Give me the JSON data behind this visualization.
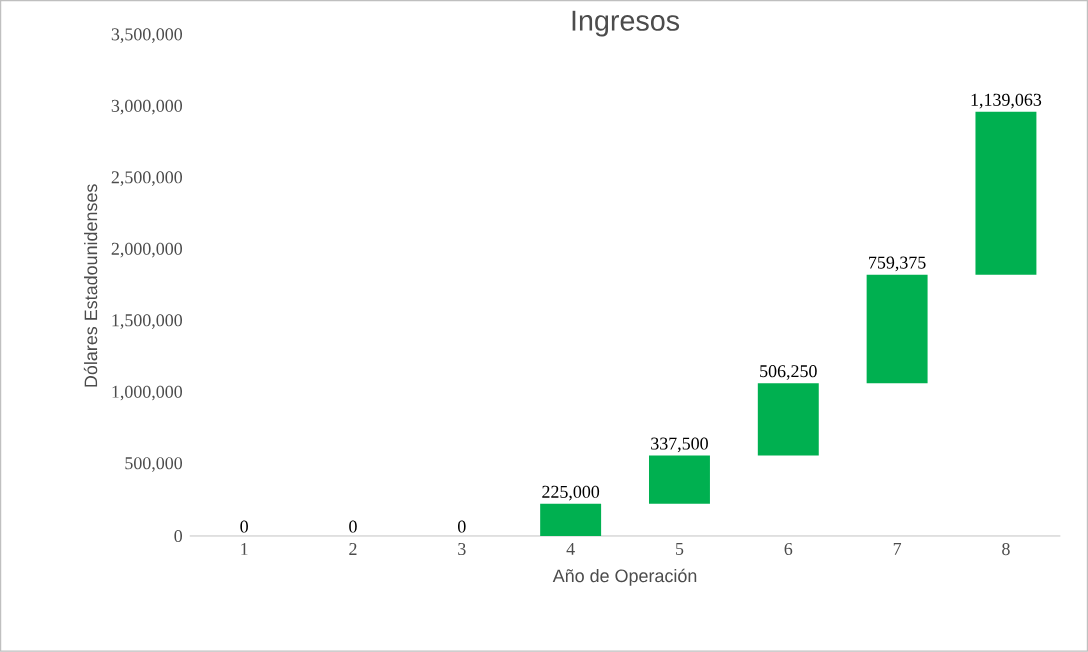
{
  "chart_data": {
    "type": "bar",
    "title": "Ingresos",
    "xlabel": "Año de Operación",
    "ylabel": "Dólares Estadounidenses",
    "categories": [
      "1",
      "2",
      "3",
      "4",
      "5",
      "6",
      "7",
      "8"
    ],
    "values": [
      0,
      0,
      0,
      225000,
      337500,
      506250,
      759375,
      1139063
    ],
    "base": [
      null,
      null,
      null,
      0,
      225000,
      562500,
      1068750,
      1828125
    ],
    "value_labels": [
      "0",
      "0",
      "0",
      "225,000",
      "337,500",
      "506,250",
      "759,375",
      "1,139,063"
    ],
    "color": "#00b050",
    "ylim": [
      0,
      3500000
    ],
    "yticks": [
      {
        "value": 0,
        "label": "0"
      },
      {
        "value": 500000,
        "label": "500,000"
      },
      {
        "value": 1000000,
        "label": "1,000,000"
      },
      {
        "value": 1500000,
        "label": "1,500,000"
      },
      {
        "value": 2000000,
        "label": "2,000,000"
      },
      {
        "value": 2500000,
        "label": "2,500,000"
      },
      {
        "value": 3000000,
        "label": "3,000,000"
      },
      {
        "value": 3500000,
        "label": "3,500,000"
      }
    ]
  }
}
